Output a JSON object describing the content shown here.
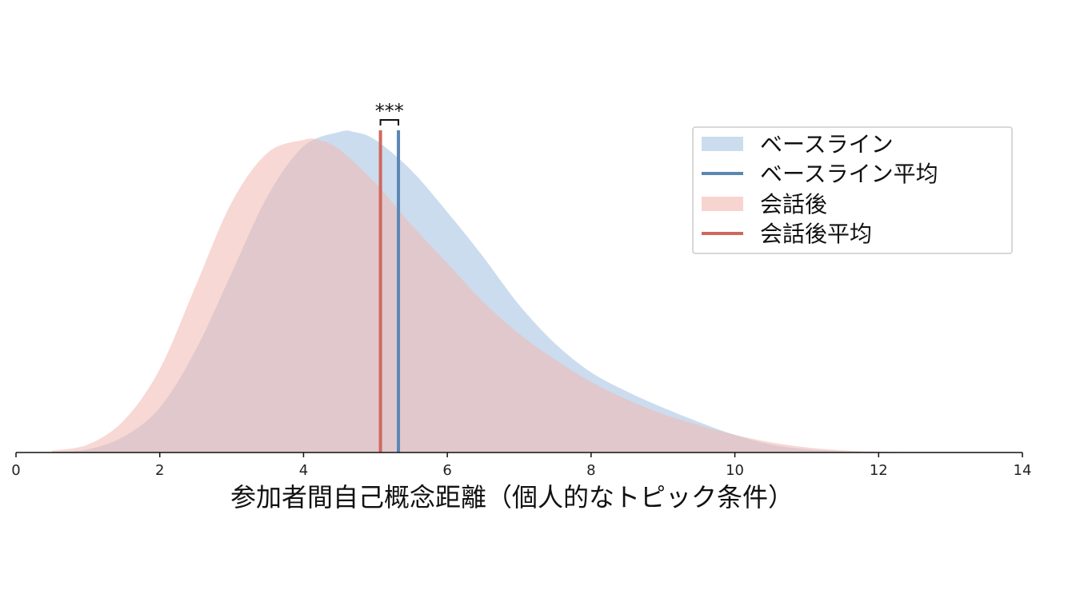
{
  "chart_data": {
    "type": "area",
    "xlabel": "参加者間自己概念距離（個人的なトピック条件）",
    "ylabel": "",
    "xlim": [
      0,
      14
    ],
    "xticks": [
      0,
      2,
      4,
      6,
      8,
      10,
      12,
      14
    ],
    "grid": false,
    "legend_position": "top-right",
    "series": [
      {
        "name": "ベースライン",
        "kind": "density",
        "color": "#a9c4e2",
        "x": [
          0.5,
          1.0,
          1.5,
          2.0,
          2.5,
          3.0,
          3.5,
          4.0,
          4.5,
          4.7,
          5.0,
          5.5,
          6.0,
          6.5,
          7.0,
          7.5,
          8.0,
          8.5,
          9.0,
          9.5,
          10.0,
          10.5,
          11.0,
          11.5,
          12.0,
          12.5
        ],
        "y": [
          0.002,
          0.01,
          0.05,
          0.14,
          0.32,
          0.56,
          0.8,
          0.955,
          1.0,
          1.0,
          0.975,
          0.88,
          0.75,
          0.61,
          0.46,
          0.34,
          0.25,
          0.19,
          0.14,
          0.095,
          0.055,
          0.025,
          0.01,
          0.004,
          0.0015,
          0.0005
        ]
      },
      {
        "name": "会話後",
        "kind": "density",
        "color": "#f3b8b1",
        "x": [
          0.5,
          1.0,
          1.5,
          2.0,
          2.5,
          3.0,
          3.5,
          4.0,
          4.2,
          4.5,
          5.0,
          5.5,
          6.0,
          6.5,
          7.0,
          7.5,
          8.0,
          8.5,
          9.0,
          9.5,
          10.0,
          10.5,
          11.0,
          11.5,
          12.0,
          12.5
        ],
        "y": [
          0.006,
          0.025,
          0.1,
          0.26,
          0.52,
          0.78,
          0.935,
          0.975,
          0.975,
          0.945,
          0.84,
          0.71,
          0.59,
          0.47,
          0.37,
          0.29,
          0.22,
          0.165,
          0.12,
          0.085,
          0.055,
          0.032,
          0.016,
          0.007,
          0.003,
          0.001
        ]
      }
    ],
    "means": [
      {
        "name": "ベースライン平均",
        "value": 5.32,
        "color": "#5b87b3"
      },
      {
        "name": "会話後平均",
        "value": 5.07,
        "color": "#d0685e"
      }
    ],
    "significance": {
      "label": "***"
    }
  }
}
